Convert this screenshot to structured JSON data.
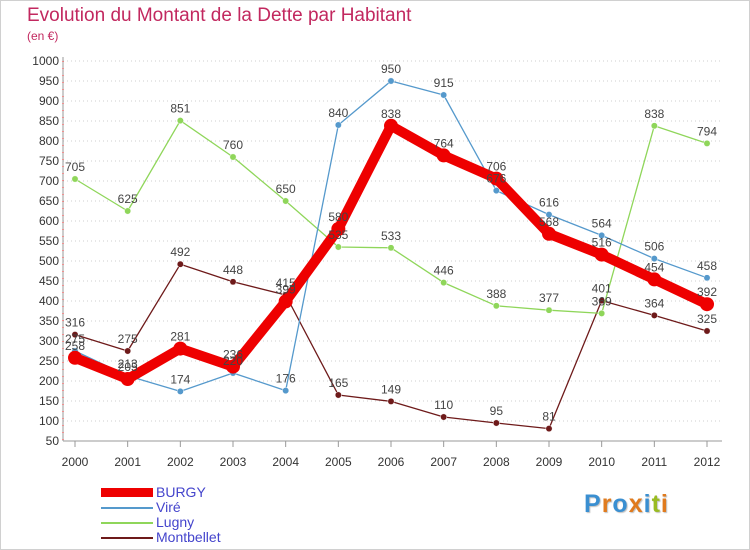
{
  "title": "Evolution du Montant de la Dette par Habitant",
  "subtitle": "(en €)",
  "logo": {
    "text": "Proxiti",
    "letters": [
      "P",
      "r",
      "o",
      "x",
      "i",
      "t",
      "i"
    ],
    "colors": [
      "#3a8fd1",
      "#e07b1e",
      "#3a8fd1",
      "#e07b1e",
      "#3a8fd1",
      "#99bb22",
      "#e07b1e"
    ]
  },
  "chart_data": {
    "type": "line",
    "x": [
      "2000",
      "2001",
      "2002",
      "2003",
      "2004",
      "2005",
      "2006",
      "2007",
      "2008",
      "2009",
      "2010",
      "2011",
      "2012"
    ],
    "ylim": [
      50,
      1000
    ],
    "yticks": [
      50,
      100,
      150,
      200,
      250,
      300,
      350,
      400,
      450,
      500,
      550,
      600,
      650,
      700,
      750,
      800,
      850,
      900,
      950,
      1000
    ],
    "grid": "horizontal dotted",
    "legend_position": "bottom-left",
    "series": [
      {
        "name": "BURGY",
        "color": "#ee0000",
        "width": 10,
        "marker": 7,
        "values": [
          258,
          205,
          281,
          236,
          399,
          580,
          838,
          764,
          706,
          568,
          516,
          454,
          392
        ]
      },
      {
        "name": "Viré",
        "color": "#5599cc",
        "width": 1.3,
        "marker": 3.2,
        "values": [
          275,
          213,
          174,
          220,
          176,
          840,
          950,
          915,
          676,
          616,
          564,
          506,
          458
        ]
      },
      {
        "name": "Lugny",
        "color": "#8fd65a",
        "width": 1.3,
        "marker": 3.2,
        "values": [
          705,
          625,
          851,
          760,
          650,
          535,
          533,
          446,
          388,
          377,
          369,
          838,
          794
        ]
      },
      {
        "name": "Montbellet",
        "color": "#6e1a1a",
        "width": 1.3,
        "marker": 3.2,
        "values": [
          316,
          275,
          492,
          448,
          415,
          165,
          149,
          110,
          95,
          81,
          401,
          364,
          325
        ]
      }
    ]
  }
}
